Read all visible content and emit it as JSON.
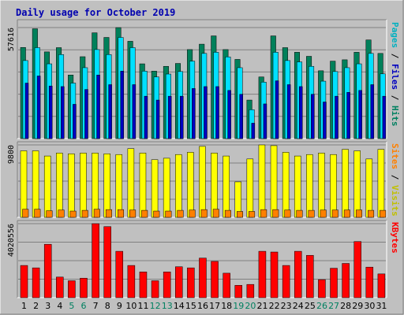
{
  "chart_data": [
    {
      "type": "bar",
      "title": "Daily usage for October 2019",
      "ylabel_parts": [
        "Pages",
        " / ",
        "Files",
        " / ",
        "Hits"
      ],
      "ymax_label": "57616",
      "ylim": [
        0,
        57616
      ],
      "categories": [
        "1",
        "2",
        "3",
        "4",
        "5",
        "6",
        "7",
        "8",
        "9",
        "10",
        "11",
        "12",
        "13",
        "14",
        "15",
        "16",
        "17",
        "18",
        "19",
        "20",
        "21",
        "22",
        "23",
        "24",
        "25",
        "26",
        "27",
        "28",
        "29",
        "30",
        "31"
      ],
      "weekend_days": [
        "5",
        "6",
        "12",
        "13",
        "19",
        "20",
        "26",
        "27"
      ],
      "series": [
        {
          "name": "Hits",
          "color": "#00805a",
          "values": [
            47300,
            57000,
            45000,
            47200,
            33000,
            42500,
            54900,
            52500,
            57600,
            50500,
            38800,
            35000,
            37500,
            39000,
            46200,
            49000,
            53300,
            46200,
            41100,
            20000,
            32000,
            53300,
            47200,
            44800,
            42700,
            35200,
            40200,
            40900,
            44800,
            51200,
            44200
          ]
        },
        {
          "name": "Files",
          "color": "#00e0ff",
          "values": [
            40500,
            47200,
            38800,
            43600,
            28800,
            36800,
            46200,
            43600,
            52500,
            47200,
            35000,
            32000,
            33500,
            34800,
            40200,
            44200,
            44800,
            42400,
            36800,
            15000,
            29300,
            44800,
            40500,
            39800,
            37500,
            29800,
            34800,
            36800,
            38800,
            44200,
            33600
          ]
        },
        {
          "name": "Pages",
          "color": "#0000c0",
          "values": [
            28800,
            32500,
            27300,
            27000,
            17800,
            25500,
            33000,
            28000,
            35000,
            28000,
            22000,
            20000,
            22000,
            22000,
            26000,
            27000,
            27000,
            25000,
            23000,
            8000,
            18000,
            30000,
            28000,
            27000,
            23000,
            19000,
            22000,
            24000,
            25000,
            28000,
            22000
          ]
        }
      ]
    },
    {
      "type": "bar",
      "ylabel_parts": [
        "Sites",
        " / ",
        "Visits"
      ],
      "ymax_label": "9800",
      "ylim": [
        0,
        9800
      ],
      "categories": [
        "1",
        "2",
        "3",
        "4",
        "5",
        "6",
        "7",
        "8",
        "9",
        "10",
        "11",
        "12",
        "13",
        "14",
        "15",
        "16",
        "17",
        "18",
        "19",
        "20",
        "21",
        "22",
        "23",
        "24",
        "25",
        "26",
        "27",
        "28",
        "29",
        "30",
        "31"
      ],
      "series": [
        {
          "name": "Visits",
          "color": "#ffff00",
          "values": [
            9000,
            9000,
            8300,
            8700,
            8600,
            8700,
            8700,
            8600,
            8500,
            9300,
            8700,
            7800,
            8000,
            8500,
            8800,
            9600,
            8700,
            8300,
            4800,
            7900,
            9800,
            9700,
            8800,
            8300,
            8500,
            8700,
            8500,
            9200,
            9000,
            7900,
            9200
          ]
        },
        {
          "name": "Sites",
          "color": "#ff8000",
          "values": [
            1100,
            1100,
            900,
            1000,
            850,
            950,
            1100,
            1050,
            1050,
            1000,
            950,
            850,
            850,
            950,
            1000,
            1050,
            1100,
            950,
            800,
            800,
            1050,
            1050,
            1000,
            950,
            950,
            1000,
            1000,
            1000,
            1000,
            950,
            950
          ]
        }
      ]
    },
    {
      "type": "bar",
      "ylabel_parts": [
        "KBytes"
      ],
      "ymax_label": "4020556",
      "ylim": [
        0,
        4020556
      ],
      "categories": [
        "1",
        "2",
        "3",
        "4",
        "5",
        "6",
        "7",
        "8",
        "9",
        "10",
        "11",
        "12",
        "13",
        "14",
        "15",
        "16",
        "17",
        "18",
        "19",
        "20",
        "21",
        "22",
        "23",
        "24",
        "25",
        "26",
        "27",
        "28",
        "29",
        "30",
        "31"
      ],
      "series": [
        {
          "name": "KBytes",
          "color": "#ff0000",
          "values": [
            1750000,
            1620000,
            2900000,
            1120000,
            920000,
            1060000,
            4020000,
            3860000,
            2520000,
            1750000,
            1400000,
            920000,
            1400000,
            1680000,
            1620000,
            2150000,
            1970000,
            1330000,
            670000,
            720000,
            2520000,
            2480000,
            1750000,
            2520000,
            2300000,
            980000,
            1600000,
            1860000,
            3050000,
            1660000,
            1290000
          ]
        }
      ]
    }
  ]
}
